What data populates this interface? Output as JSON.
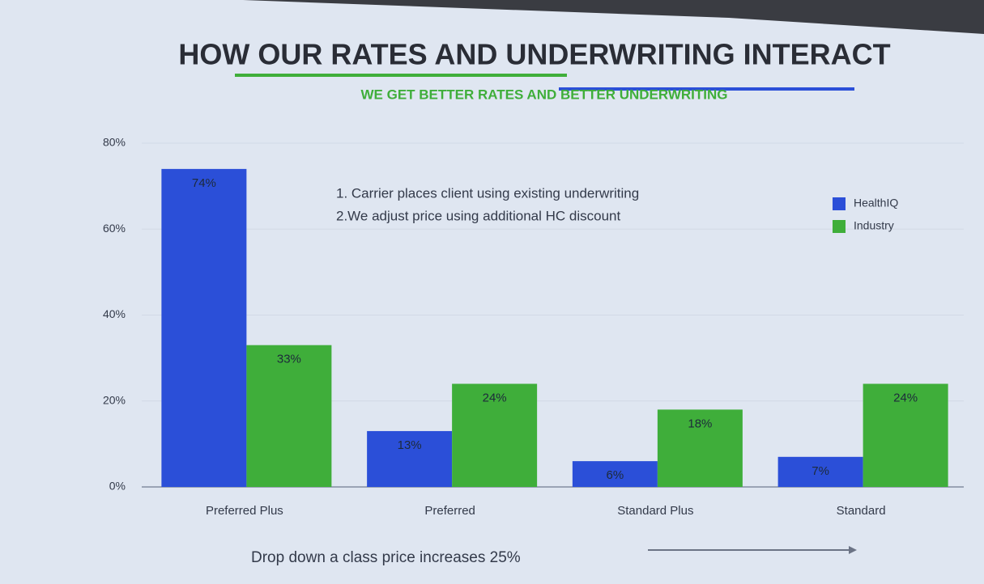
{
  "chart_data": {
    "type": "bar",
    "title": "HOW OUR RATES AND UNDERWRITING INTERACT",
    "subtitle": "WE GET BETTER RATES AND BETTER UNDERWRITING",
    "annotations": [
      "1. Carrier places client using existing underwriting",
      "2.We adjust price using additional HC discount",
      "Drop down a class price increases 25%"
    ],
    "categories": [
      "Preferred Plus",
      "Preferred",
      "Standard Plus",
      "Standard"
    ],
    "series": [
      {
        "name": "HealthIQ",
        "color": "#2b4fd8",
        "values": [
          74,
          13,
          6,
          7
        ],
        "value_labels": [
          "74%",
          "13%",
          "6%",
          "7%"
        ]
      },
      {
        "name": "Industry",
        "color": "#3fae3a",
        "values": [
          33,
          24,
          18,
          24
        ],
        "value_labels": [
          "33%",
          "24%",
          "18%",
          "24%"
        ]
      }
    ],
    "ylim": [
      0,
      80
    ],
    "yticks": [
      {
        "value": 0,
        "label": "0%"
      },
      {
        "value": 20,
        "label": "20%"
      },
      {
        "value": 40,
        "label": "40%"
      },
      {
        "value": 60,
        "label": "60%"
      },
      {
        "value": 80,
        "label": "80%"
      }
    ],
    "grid": true,
    "legend": "top-right"
  }
}
